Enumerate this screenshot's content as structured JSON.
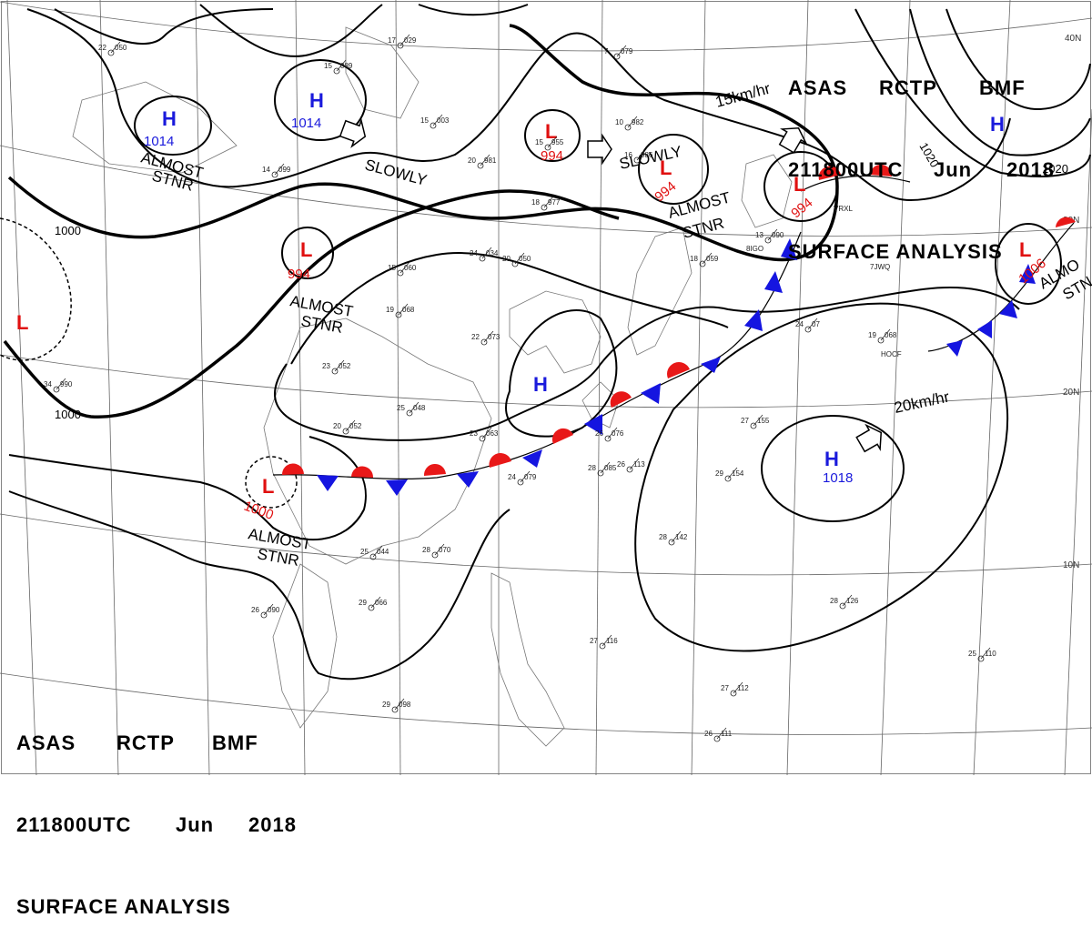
{
  "header": {
    "line1": [
      "ASAS",
      "RCTP",
      "BMF"
    ],
    "line2": [
      "211800UTC",
      "Jun",
      "2018"
    ],
    "line3": "SURFACE ANALYSIS"
  },
  "lat_labels": [
    "40N",
    "30N",
    "20N",
    "10N"
  ],
  "isobar_labels": [
    "1000",
    "1000",
    "1020",
    "1020"
  ],
  "centers": [
    {
      "type": "H",
      "value": "1014",
      "color": "#1a1adc"
    },
    {
      "type": "H",
      "value": "1014",
      "color": "#1a1adc"
    },
    {
      "type": "L",
      "value": "994",
      "color": "#e01010"
    },
    {
      "type": "L",
      "value": "994",
      "color": "#e01010"
    },
    {
      "type": "L",
      "value": "994",
      "color": "#e01010"
    },
    {
      "type": "L",
      "value": "994",
      "color": "#e01010"
    },
    {
      "type": "L",
      "value": "1006",
      "color": "#e01010"
    },
    {
      "type": "L",
      "value": "",
      "color": "#e01010"
    },
    {
      "type": "L",
      "value": "1000",
      "color": "#e01010"
    },
    {
      "type": "H",
      "value": "",
      "color": "#1a1adc"
    },
    {
      "type": "H",
      "value": "1018",
      "color": "#1a1adc"
    },
    {
      "type": "H",
      "value": "",
      "color": "#1a1adc"
    }
  ],
  "motion_labels": {
    "slowly_1": "SLOWLY",
    "slowly_2": "SLOWLY",
    "speed_15": "15km/hr",
    "speed_20": "20km/hr",
    "almost_1": "ALMOST",
    "stnr_1": "STNR",
    "almost_2": "ALMOST",
    "stnr_2": "STNR",
    "almost_3": "ALMOST",
    "stnr_3": "STNR",
    "almost_4": "ALMOST",
    "stnr_4": "STNR",
    "almost_5": "ALMO",
    "stnr_5": "STN"
  },
  "stations": [
    {
      "t": "22",
      "p": "050"
    },
    {
      "t": "17",
      "p": "029"
    },
    {
      "t": "15",
      "p": "089"
    },
    {
      "t": "15",
      "p": "003"
    },
    {
      "t": "14",
      "p": "099"
    },
    {
      "t": "7",
      "p": "079"
    },
    {
      "t": "10",
      "p": "982"
    },
    {
      "t": "15",
      "p": "955"
    },
    {
      "t": "16",
      "p": "986"
    },
    {
      "t": "20",
      "p": "981"
    },
    {
      "t": "18",
      "p": "977"
    },
    {
      "t": "24",
      "p": "034"
    },
    {
      "t": "20",
      "p": "050"
    },
    {
      "t": "15",
      "p": "060"
    },
    {
      "t": "19",
      "p": "068"
    },
    {
      "t": "22",
      "p": "073"
    },
    {
      "t": "23",
      "p": "052"
    },
    {
      "t": "25",
      "p": "048"
    },
    {
      "t": "20",
      "p": "052"
    },
    {
      "t": "23",
      "p": "063"
    },
    {
      "t": "24",
      "p": "079"
    },
    {
      "t": "26",
      "p": "076"
    },
    {
      "t": "28",
      "p": "085"
    },
    {
      "t": "26",
      "p": "113"
    },
    {
      "t": "27",
      "p": "155"
    },
    {
      "t": "29",
      "p": "154"
    },
    {
      "t": "28",
      "p": "142"
    },
    {
      "t": "28",
      "p": "126"
    },
    {
      "t": "27",
      "p": "116"
    },
    {
      "t": "25",
      "p": "110"
    },
    {
      "t": "27",
      "p": "112"
    },
    {
      "t": "26",
      "p": "111"
    },
    {
      "t": "29",
      "p": "098"
    },
    {
      "t": "29",
      "p": "066"
    },
    {
      "t": "28",
      "p": "070"
    },
    {
      "t": "26",
      "p": "090"
    },
    {
      "t": "25",
      "p": "044"
    },
    {
      "t": "34",
      "p": "990"
    },
    {
      "t": "13",
      "p": "090"
    },
    {
      "t": "18",
      "p": "059"
    },
    {
      "t": "24",
      "p": "07"
    },
    {
      "t": "19",
      "p": "068"
    }
  ],
  "station_ids": [
    "HOCF",
    "7JWQ",
    "VRXL",
    "8IGO"
  ],
  "colors": {
    "warm_front": "#e81818",
    "cold_front": "#1515e0",
    "isobar": "#000000",
    "grid": "#555555"
  }
}
